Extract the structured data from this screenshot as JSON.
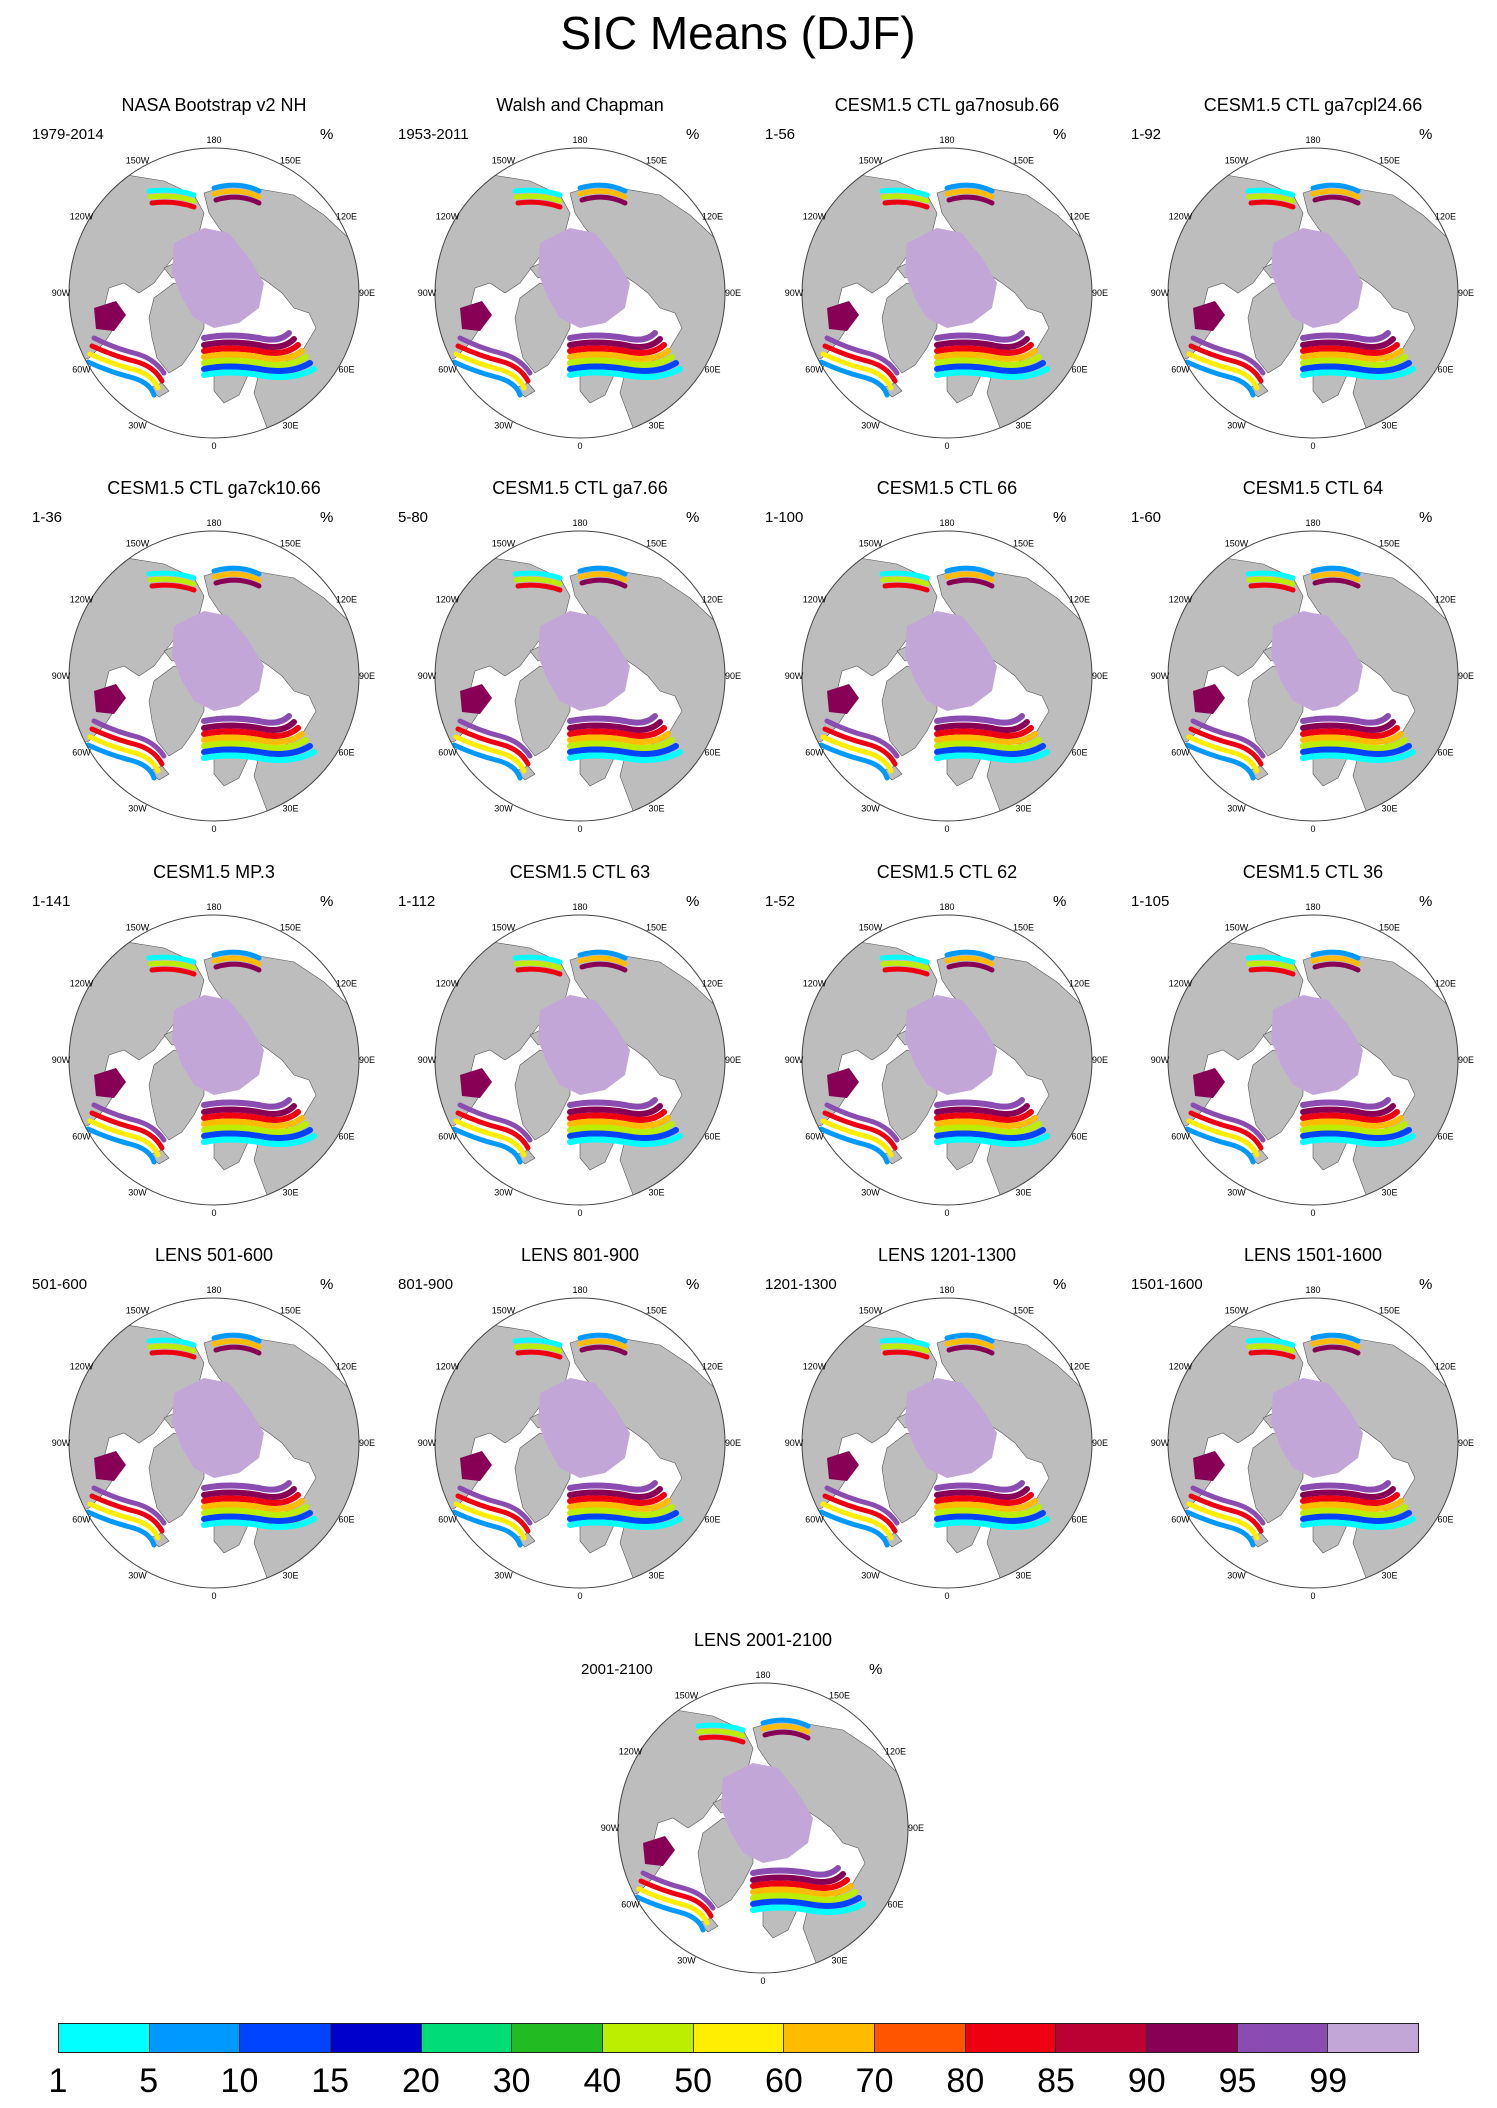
{
  "title": "SIC Means (DJF)",
  "unit": "%",
  "lon_labels": [
    "180",
    "150E",
    "120E",
    "90E",
    "60E",
    "30E",
    "0",
    "30W",
    "60W",
    "90W",
    "120W",
    "150W"
  ],
  "panels": [
    {
      "title": "NASA Bootstrap v2 NH",
      "period": "1979-2014"
    },
    {
      "title": "Walsh and Chapman",
      "period": "1953-2011"
    },
    {
      "title": "CESM1.5 CTL ga7nosub.66",
      "period": "1-56"
    },
    {
      "title": "CESM1.5 CTL ga7cpl24.66",
      "period": "1-92"
    },
    {
      "title": "CESM1.5 CTL ga7ck10.66",
      "period": "1-36"
    },
    {
      "title": "CESM1.5 CTL ga7.66",
      "period": "5-80"
    },
    {
      "title": "CESM1.5 CTL 66",
      "period": "1-100"
    },
    {
      "title": "CESM1.5 CTL 64",
      "period": "1-60"
    },
    {
      "title": "CESM1.5 MP.3",
      "period": "1-141"
    },
    {
      "title": "CESM1.5 CTL 63",
      "period": "1-112"
    },
    {
      "title": "CESM1.5 CTL 62",
      "period": "1-52"
    },
    {
      "title": "CESM1.5 CTL 36",
      "period": "1-105"
    },
    {
      "title": "LENS 501-600",
      "period": "501-600"
    },
    {
      "title": "LENS 801-900",
      "period": "801-900"
    },
    {
      "title": "LENS 1201-1300",
      "period": "1201-1300"
    },
    {
      "title": "LENS 1501-1600",
      "period": "1501-1600"
    },
    {
      "title": "LENS 2001-2100",
      "period": "2001-2100"
    }
  ],
  "colorbar": {
    "labels": [
      "1",
      "5",
      "10",
      "15",
      "20",
      "30",
      "40",
      "50",
      "60",
      "70",
      "80",
      "85",
      "90",
      "95",
      "99"
    ],
    "colors": [
      "#00ffff",
      "#0099ff",
      "#0044ff",
      "#0000cc",
      "#00dd77",
      "#22bb22",
      "#bbee00",
      "#ffee00",
      "#ffbb00",
      "#ff5500",
      "#ee0011",
      "#bb0033",
      "#880055",
      "#8a4cb0",
      "#c3a6d8"
    ]
  },
  "colors": {
    "land": "#bdbdbd",
    "ocean": "#ffffff",
    "coast": "#555555"
  }
}
